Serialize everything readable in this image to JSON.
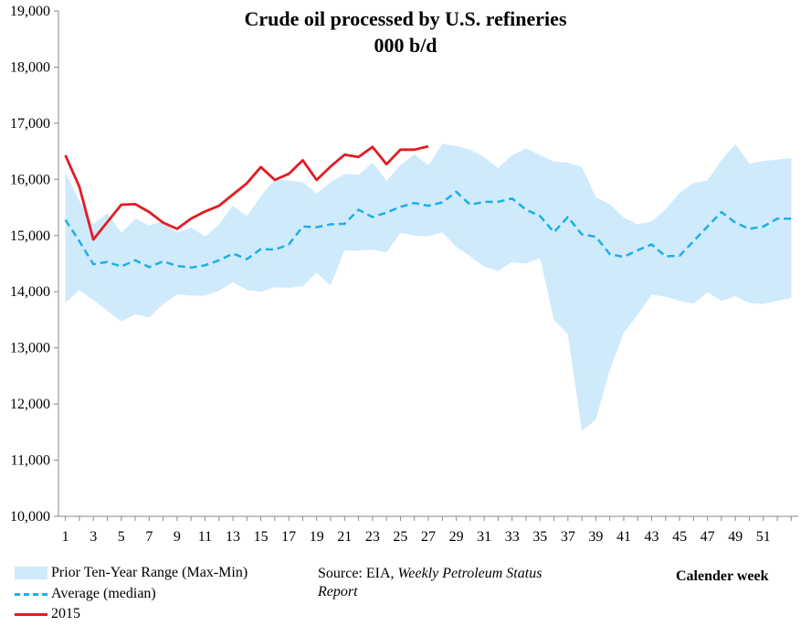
{
  "chart_data": {
    "type": "line",
    "title": "Crude oil processed by U.S. refineries",
    "subtitle": "000 b/d",
    "xlabel": "Calender week",
    "ylabel": "",
    "xlim": [
      1,
      53
    ],
    "ylim": [
      10000,
      19000
    ],
    "y_ticks": [
      "10,000",
      "11,000",
      "12,000",
      "13,000",
      "14,000",
      "15,000",
      "16,000",
      "17,000",
      "18,000",
      "19,000"
    ],
    "y_tick_values": [
      10000,
      11000,
      12000,
      13000,
      14000,
      15000,
      16000,
      17000,
      18000,
      19000
    ],
    "x_ticks": [
      "1",
      "3",
      "5",
      "7",
      "9",
      "11",
      "13",
      "15",
      "17",
      "19",
      "21",
      "23",
      "25",
      "27",
      "29",
      "31",
      "33",
      "35",
      "37",
      "39",
      "41",
      "43",
      "45",
      "47",
      "49",
      "51"
    ],
    "x_tick_values": [
      1,
      3,
      5,
      7,
      9,
      11,
      13,
      15,
      17,
      19,
      21,
      23,
      25,
      27,
      29,
      31,
      33,
      35,
      37,
      39,
      41,
      43,
      45,
      47,
      49,
      51
    ],
    "grid": false,
    "legend_position": "bottom-left",
    "colors": {
      "range": "#cfeafb",
      "median": "#1ab0e6",
      "y2015": "#e31b23"
    },
    "range": {
      "name": "Prior Ten-Year Range (Max-Min)",
      "x": [
        1,
        2,
        3,
        4,
        5,
        6,
        7,
        8,
        9,
        10,
        11,
        12,
        13,
        14,
        15,
        16,
        17,
        18,
        19,
        20,
        21,
        22,
        23,
        24,
        25,
        26,
        27,
        28,
        29,
        30,
        31,
        32,
        33,
        34,
        35,
        36,
        37,
        38,
        39,
        40,
        41,
        42,
        43,
        44,
        45,
        46,
        47,
        48,
        49,
        50,
        51,
        52,
        53
      ],
      "max": [
        16120,
        15620,
        15200,
        15400,
        15050,
        15300,
        15180,
        15250,
        15050,
        15150,
        14980,
        15200,
        15530,
        15350,
        15700,
        16000,
        15980,
        15950,
        15750,
        15950,
        16100,
        16080,
        16300,
        15980,
        16250,
        16450,
        16250,
        16630,
        16600,
        16530,
        16400,
        16200,
        16430,
        16550,
        16430,
        16320,
        16300,
        16220,
        15680,
        15560,
        15320,
        15200,
        15250,
        15470,
        15760,
        15940,
        15980,
        16340,
        16630,
        16280,
        16330,
        16350,
        16380
      ],
      "min": [
        13800,
        14030,
        13850,
        13660,
        13470,
        13600,
        13540,
        13780,
        13950,
        13930,
        13930,
        14020,
        14170,
        14030,
        14000,
        14080,
        14070,
        14100,
        14340,
        14110,
        14740,
        14730,
        14750,
        14700,
        15050,
        15000,
        14990,
        15060,
        14800,
        14630,
        14450,
        14370,
        14530,
        14500,
        14600,
        13500,
        13240,
        11520,
        11720,
        12610,
        13270,
        13590,
        13950,
        13910,
        13840,
        13790,
        13990,
        13840,
        13920,
        13800,
        13780,
        13840,
        13890
      ]
    },
    "series": [
      {
        "name": "Average (median)",
        "x": [
          1,
          2,
          3,
          4,
          5,
          6,
          7,
          8,
          9,
          10,
          11,
          12,
          13,
          14,
          15,
          16,
          17,
          18,
          19,
          20,
          21,
          22,
          23,
          24,
          25,
          26,
          27,
          28,
          29,
          30,
          31,
          32,
          33,
          34,
          35,
          36,
          37,
          38,
          39,
          40,
          41,
          42,
          43,
          44,
          45,
          46,
          47,
          48,
          49,
          50,
          51,
          52,
          53
        ],
        "values": [
          15280,
          14900,
          14490,
          14530,
          14450,
          14560,
          14440,
          14540,
          14460,
          14430,
          14470,
          14560,
          14680,
          14580,
          14760,
          14750,
          14840,
          15160,
          15150,
          15200,
          15210,
          15460,
          15330,
          15410,
          15510,
          15580,
          15530,
          15590,
          15780,
          15550,
          15600,
          15600,
          15660,
          15460,
          15350,
          15060,
          15330,
          15020,
          14980,
          14670,
          14620,
          14740,
          14840,
          14630,
          14640,
          14900,
          15160,
          15420,
          15230,
          15120,
          15160,
          15300,
          15300
        ]
      },
      {
        "name": "2015",
        "x": [
          1,
          2,
          3,
          4,
          5,
          6,
          7,
          8,
          9,
          10,
          11,
          12,
          13,
          14,
          15,
          16,
          17,
          18,
          19,
          20,
          21,
          22,
          23,
          24,
          25,
          26,
          27
        ],
        "values": [
          16430,
          15870,
          14930,
          15240,
          15550,
          15560,
          15420,
          15230,
          15120,
          15300,
          15430,
          15530,
          15730,
          15930,
          16220,
          15990,
          16100,
          16340,
          15990,
          16230,
          16440,
          16400,
          16580,
          16270,
          16530,
          16530,
          16590
        ]
      }
    ],
    "source_prefix": "Source: EIA, ",
    "source_italic_1": "Weekly Petroleum Status",
    "source_italic_2": "Report"
  }
}
